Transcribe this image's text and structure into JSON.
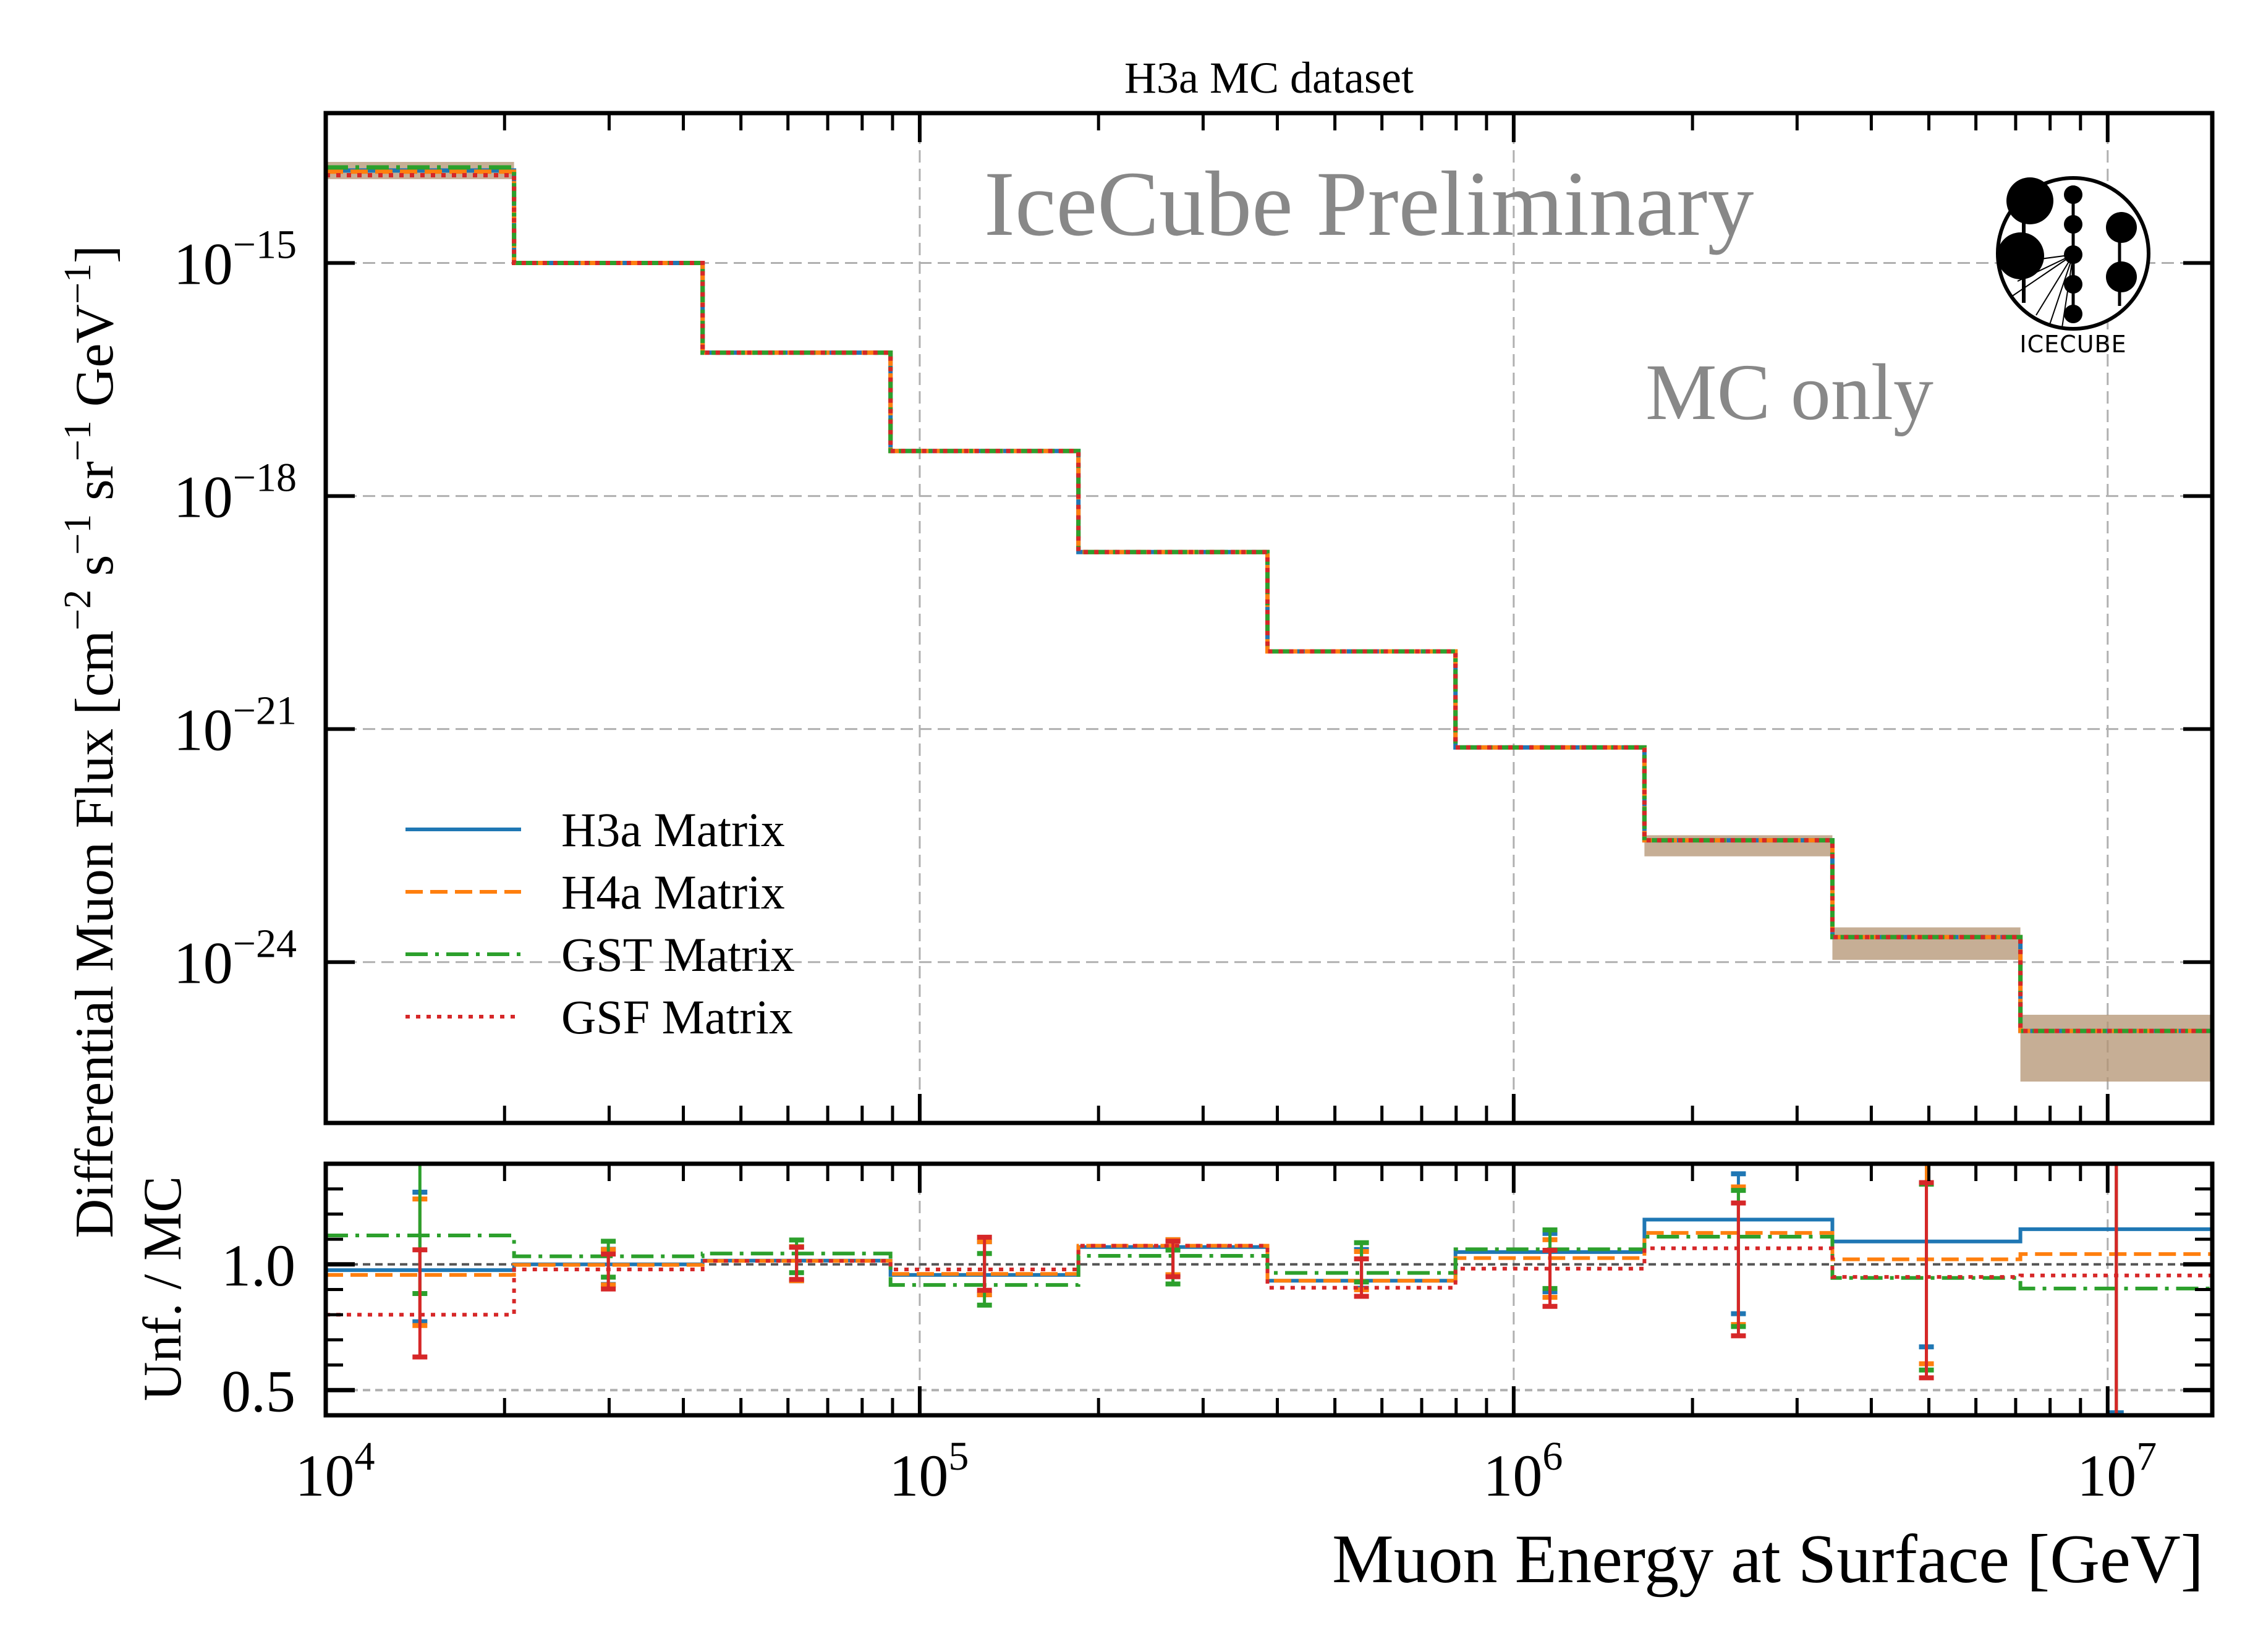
{
  "chart_data": [
    {
      "type": "line",
      "panel": "main",
      "title": "H3a MC dataset",
      "xlabel": "Muon Energy at Surface [GeV]",
      "ylabel": "Differential Muon Flux [cm^-2 s^-1 sr^-1 GeV^-1]",
      "ylabel_parts": {
        "a": "Differential Muon Flux [cm",
        "e1": "−2",
        "b": " s",
        "e2": "−1",
        "c": " sr",
        "e3": "−1",
        "d": " GeV",
        "e4": "−1",
        "f": "]"
      },
      "x_scale": "log",
      "y_scale": "log",
      "xlim": [
        10000,
        15000000
      ],
      "ylim": [
        8.5e-27,
        8.5e-14
      ],
      "grid": true,
      "legend_placement": "lower-left",
      "annotations": [
        "IceCube Preliminary",
        "MC only"
      ],
      "logo_text": "IceCube",
      "x_ticks": [
        {
          "value": 10000,
          "base": "10",
          "exp": "4"
        },
        {
          "value": 100000,
          "base": "10",
          "exp": "5"
        },
        {
          "value": 1000000,
          "base": "10",
          "exp": "6"
        },
        {
          "value": 10000000,
          "base": "10",
          "exp": "7"
        }
      ],
      "y_ticks": [
        {
          "value": 1e-15,
          "base": "10",
          "exp": "−15"
        },
        {
          "value": 1e-18,
          "base": "10",
          "exp": "−18"
        },
        {
          "value": 1e-21,
          "base": "10",
          "exp": "−21"
        },
        {
          "value": 1e-24,
          "base": "10",
          "exp": "−24"
        }
      ],
      "bin_edges": [
        10000,
        20750,
        43100,
        89300,
        185000,
        385000,
        798000,
        1660000,
        3440000,
        7130000,
        15000000
      ],
      "uncertainty_band": {
        "color": "#b39372",
        "lower": [
          1.2e-14,
          9.5e-16,
          6.7e-17,
          3.6e-18,
          1.8e-19,
          9.5e-21,
          5.5e-22,
          2.3e-23,
          1.07e-24,
          2.9e-26
        ],
        "upper": [
          2e-14,
          1.05e-15,
          7.3e-17,
          4e-18,
          2e-19,
          1.05e-20,
          6.1e-22,
          4.3e-23,
          2.8e-24,
          2.1e-25
        ]
      },
      "series": [
        {
          "name": "H3a Matrix",
          "color": "#1f77b4",
          "style": "solid",
          "values": [
            1.55e-14,
            1e-15,
            7e-17,
            3.8e-18,
            1.9e-19,
            1e-20,
            5.8e-22,
            3.7e-23,
            2.1e-24,
            1.3e-25
          ]
        },
        {
          "name": "H4a Matrix",
          "color": "#ff7f0e",
          "style": "dashed",
          "values": [
            1.5e-14,
            1e-15,
            7e-17,
            3.8e-18,
            1.9e-19,
            1e-20,
            5.8e-22,
            3.7e-23,
            2.1e-24,
            1.3e-25
          ]
        },
        {
          "name": "GST Matrix",
          "color": "#2ca02c",
          "style": "dashdot",
          "values": [
            1.7e-14,
            1e-15,
            7e-17,
            3.8e-18,
            1.9e-19,
            1e-20,
            5.8e-22,
            3.7e-23,
            2.1e-24,
            1.3e-25
          ]
        },
        {
          "name": "GSF Matrix",
          "color": "#d62728",
          "style": "dotted",
          "values": [
            1.35e-14,
            1e-15,
            7e-17,
            3.8e-18,
            1.9e-19,
            1e-20,
            5.8e-22,
            3.7e-23,
            2.1e-24,
            1.3e-25
          ]
        }
      ]
    },
    {
      "type": "line",
      "panel": "ratio",
      "ylabel": "Unf. / MC",
      "x_scale": "log",
      "xlim": [
        10000,
        15000000
      ],
      "ylim": [
        0.4,
        1.4
      ],
      "grid": true,
      "reference_line": 1.0,
      "y_ticks": [
        {
          "value": 1.0,
          "label": "1.0"
        },
        {
          "value": 0.5,
          "label": "0.5"
        }
      ],
      "series": [
        {
          "name": "H3a Matrix",
          "color": "#1f77b4",
          "style": "solid",
          "values": [
            0.977,
            1.0,
            1.015,
            0.958,
            1.069,
            0.935,
            1.049,
            1.178,
            1.091,
            1.14
          ],
          "errors": [
            [
              0.772,
              1.287
            ],
            [
              0.92,
              1.06
            ],
            [
              0.935,
              1.07
            ],
            [
              0.88,
              1.09
            ],
            [
              0.959,
              1.098
            ],
            [
              0.905,
              1.059
            ],
            [
              0.891,
              1.123
            ],
            [
              0.804,
              1.36
            ],
            [
              0.672,
              1.6
            ],
            [
              0.41,
              1.8
            ]
          ]
        },
        {
          "name": "H4a Matrix",
          "color": "#ff7f0e",
          "style": "dashed",
          "values": [
            0.958,
            0.998,
            1.014,
            0.962,
            1.074,
            0.935,
            1.025,
            1.125,
            1.02,
            1.041
          ],
          "errors": [
            [
              0.757,
              1.26
            ],
            [
              0.918,
              1.059
            ],
            [
              0.935,
              1.07
            ],
            [
              0.879,
              1.09
            ],
            [
              0.959,
              1.098
            ],
            [
              0.899,
              1.051
            ],
            [
              0.869,
              1.098
            ],
            [
              0.761,
              1.308
            ],
            [
              0.605,
              1.6
            ],
            [
              0.3,
              1.8
            ]
          ]
        },
        {
          "name": "GST Matrix",
          "color": "#2ca02c",
          "style": "dashdot",
          "values": [
            1.115,
            1.032,
            1.043,
            0.918,
            1.034,
            0.966,
            1.06,
            1.11,
            0.946,
            0.904
          ],
          "errors": [
            [
              0.884,
              1.6
            ],
            [
              0.949,
              1.092
            ],
            [
              0.967,
              1.097
            ],
            [
              0.838,
              1.043
            ],
            [
              0.922,
              1.057
            ],
            [
              0.93,
              1.086
            ],
            [
              0.904,
              1.137
            ],
            [
              0.753,
              1.294
            ],
            [
              0.58,
              1.319
            ],
            [
              0.3,
              1.8
            ]
          ]
        },
        {
          "name": "GSF Matrix",
          "color": "#d62728",
          "style": "dotted",
          "values": [
            0.8,
            0.98,
            1.014,
            0.98,
            1.074,
            0.907,
            0.983,
            1.064,
            0.95,
            0.956
          ],
          "errors": [
            [
              0.632,
              1.058
            ],
            [
              0.902,
              1.041
            ],
            [
              0.94,
              1.068
            ],
            [
              0.897,
              1.108
            ],
            [
              0.951,
              1.092
            ],
            [
              0.873,
              1.022
            ],
            [
              0.833,
              1.056
            ],
            [
              0.716,
              1.244
            ],
            [
              0.549,
              1.325
            ],
            [
              0.2,
              1.8
            ]
          ]
        }
      ]
    }
  ]
}
